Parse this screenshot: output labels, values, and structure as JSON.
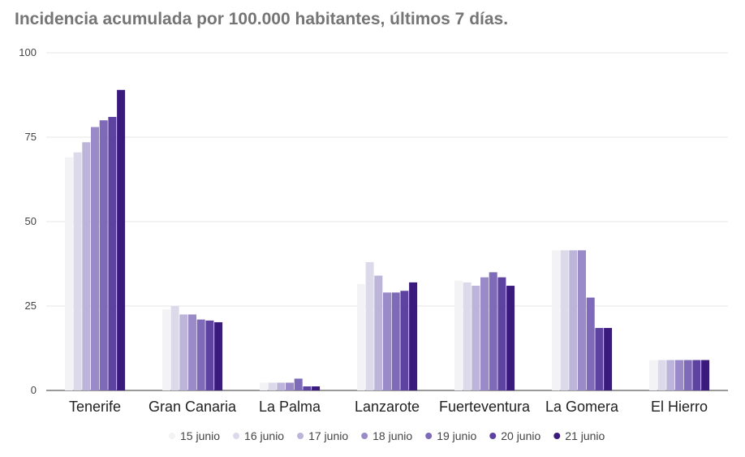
{
  "chart_data": {
    "type": "bar",
    "title": "Incidencia acumulada por 100.000 habitantes, últimos 7 días.",
    "xlabel": "",
    "ylabel": "",
    "ylim": [
      0,
      100
    ],
    "yticks": [
      "0",
      "25",
      "50",
      "75",
      "100"
    ],
    "grid": true,
    "legend_position": "bottom",
    "categories": [
      "Tenerife",
      "Gran Canaria",
      "La Palma",
      "Lanzarote",
      "Fuerteventura",
      "La Gomera",
      "El Hierro"
    ],
    "series": [
      {
        "name": "15 junio",
        "color": "#f3f3f6",
        "values": [
          69,
          24,
          2.3,
          31.5,
          32.5,
          41.5,
          9
        ]
      },
      {
        "name": "16 junio",
        "color": "#dcd9ea",
        "values": [
          70.5,
          25,
          2.3,
          38,
          32,
          41.5,
          9
        ]
      },
      {
        "name": "17 junio",
        "color": "#bcb4d9",
        "values": [
          73.5,
          22.5,
          2.3,
          34,
          31,
          41.5,
          9
        ]
      },
      {
        "name": "18 junio",
        "color": "#9a8bc8",
        "values": [
          78,
          22.5,
          2.3,
          29,
          33.5,
          41.5,
          9
        ]
      },
      {
        "name": "19 junio",
        "color": "#7e6ab8",
        "values": [
          80,
          21,
          3.5,
          29,
          35,
          27.5,
          9
        ]
      },
      {
        "name": "20 junio",
        "color": "#5e42a0",
        "values": [
          81,
          20.7,
          1.2,
          29.5,
          33.5,
          18.5,
          9
        ]
      },
      {
        "name": "21 junio",
        "color": "#3b1a7d",
        "values": [
          89,
          20.2,
          1.2,
          32,
          31,
          18.5,
          9
        ]
      }
    ]
  }
}
